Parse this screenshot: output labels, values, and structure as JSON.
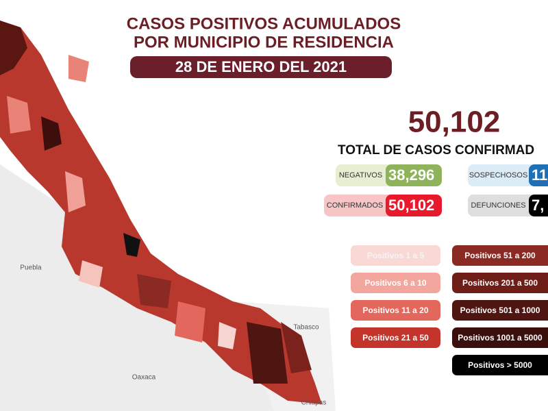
{
  "header": {
    "title_lines": [
      "CASOS POSITIVOS ACUMULADOS",
      "POR MUNICIPIO DE RESIDENCIA"
    ],
    "date": "28 DE ENERO DEL 2021"
  },
  "summary": {
    "total": "50,102",
    "total_label": "TOTAL DE CASOS CONFIRMAD",
    "stats": [
      {
        "label": "NEGATIVOS",
        "value": "38,296"
      },
      {
        "label": "SOSPECHOSOS",
        "value": "11"
      },
      {
        "label": "CONFIRMADOS",
        "value": "50,102"
      },
      {
        "label": "DEFUNCIONES",
        "value": "7,"
      }
    ]
  },
  "legend": [
    "Positivos 1 a 5",
    "Positivos 6 a 10",
    "Positivos 11 a 20",
    "Positivos 21 a 50",
    "Positivos 51 a 200",
    "Positivos 201 a 500",
    "Positivos 501 a 1000",
    "Positivos 1001 a 5000",
    "Positivos > 5000"
  ],
  "map_labels": [
    "Puebla",
    "Oaxaca",
    "Tabasco",
    "Chiapas"
  ]
}
